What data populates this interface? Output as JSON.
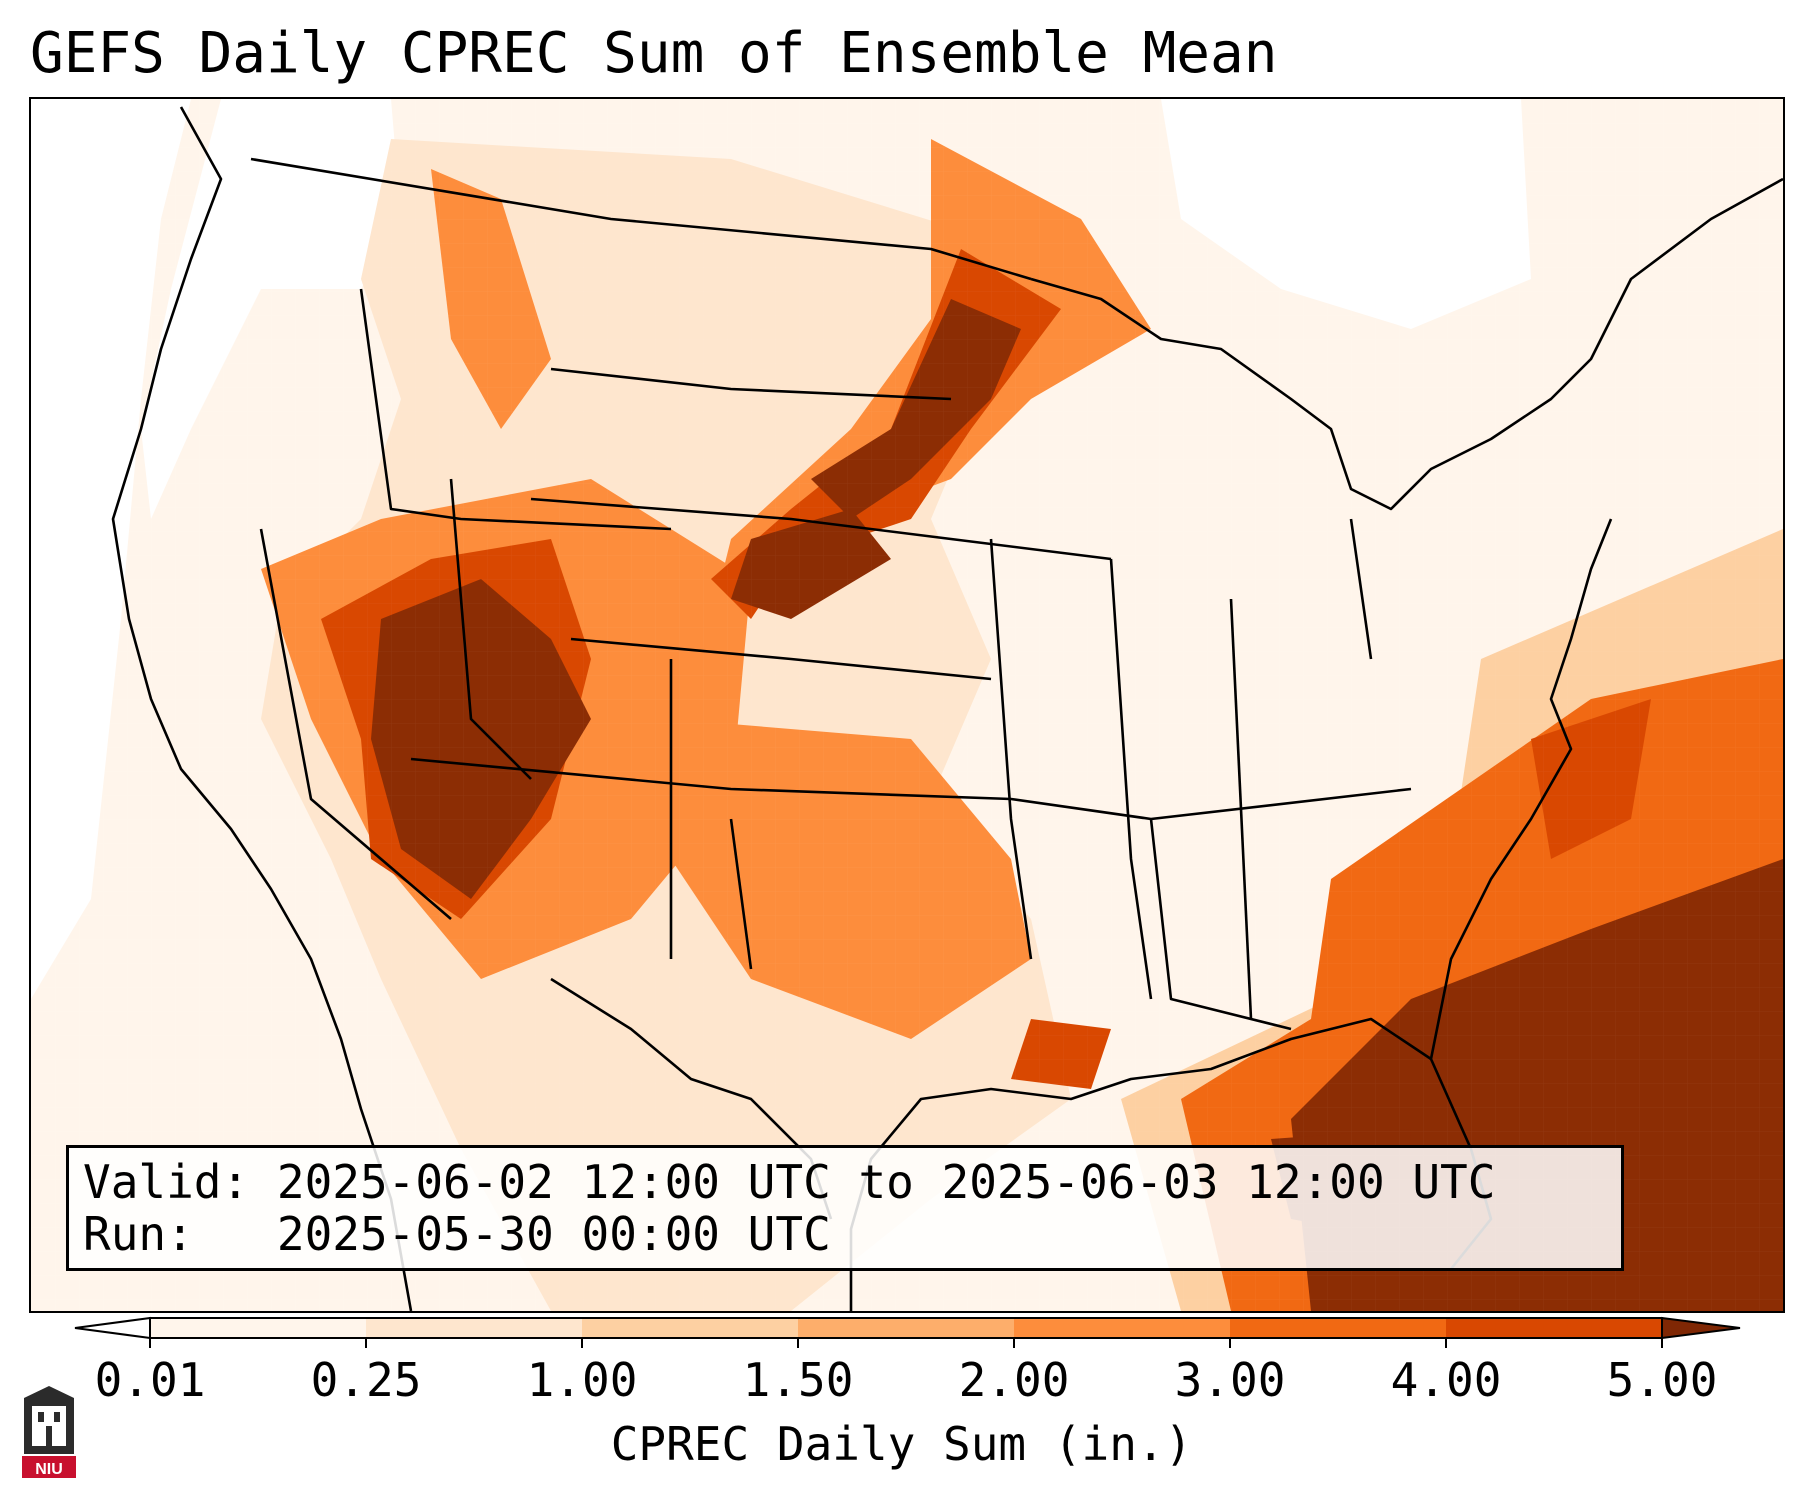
{
  "title": "GEFS Daily CPREC Sum of Ensemble Mean",
  "info": {
    "valid_label": "Valid:",
    "valid_value": "2025-06-02 12:00 UTC to 2025-06-03 12:00 UTC",
    "run_label": "Run:",
    "run_value": "2025-05-30 00:00 UTC"
  },
  "colorbar": {
    "title": "CPREC Daily Sum (in.)",
    "ticks": [
      "0.01",
      "0.25",
      "1.00",
      "1.50",
      "2.00",
      "3.00",
      "4.00",
      "5.00"
    ],
    "colors": [
      "#fff5eb",
      "#fee6ce",
      "#fdd0a2",
      "#fdae6b",
      "#fd8d3c",
      "#f16913",
      "#d94801",
      "#8c2d04"
    ],
    "under_color": "#ffffff",
    "over_color": "#7f2704"
  },
  "logo": {
    "text": "NIU",
    "color": "#c8102e"
  },
  "map": {
    "region": "Contiguous United States",
    "precip_areas": [
      {
        "name": "southeast-coast-max",
        "level": 7
      },
      {
        "name": "florida-max",
        "level": 7
      },
      {
        "name": "four-corners-max",
        "level": 7
      },
      {
        "name": "northern-plains-band",
        "level": 6
      },
      {
        "name": "carolina-coastal",
        "level": 6
      },
      {
        "name": "southern-plains",
        "level": 5
      },
      {
        "name": "gulf-coast-louisiana",
        "level": 6
      }
    ]
  }
}
